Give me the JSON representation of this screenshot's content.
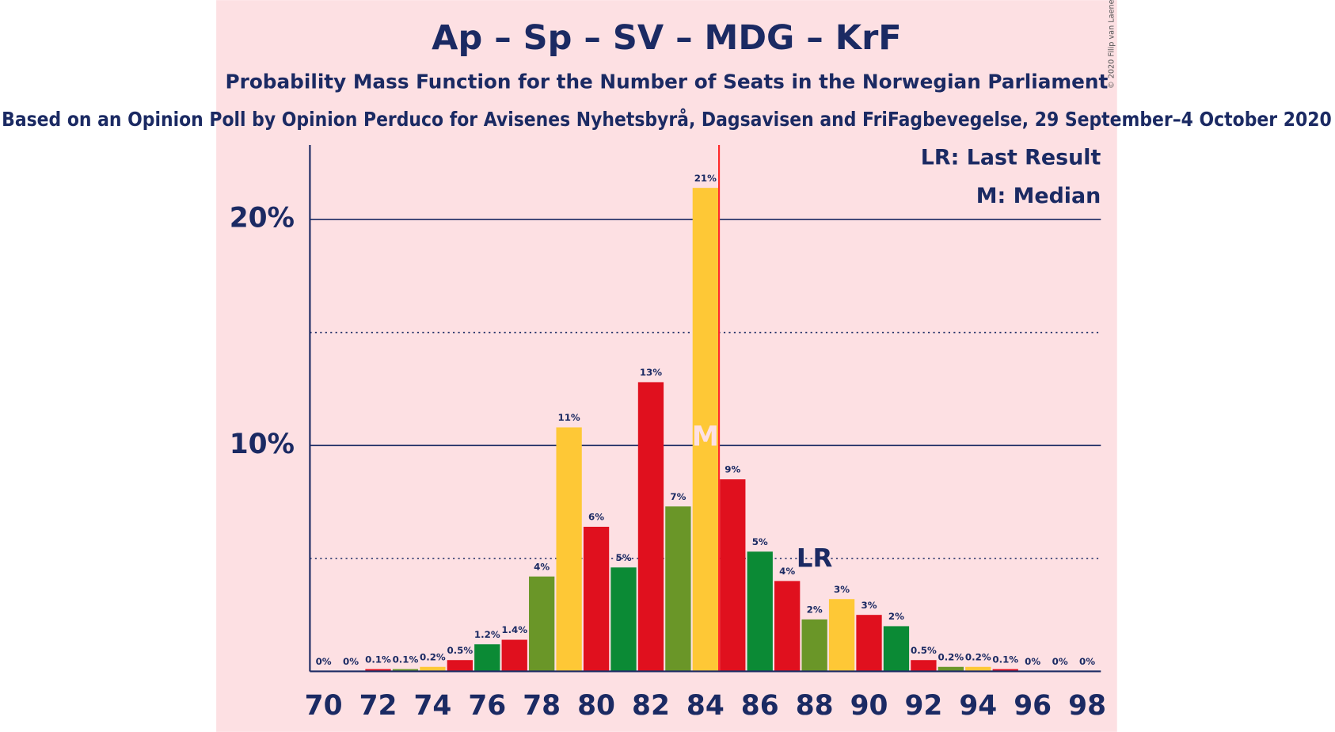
{
  "chart_data": {
    "type": "bar",
    "title": "Ap – Sp – SV – MDG – KrF",
    "subtitle": "Probability Mass Function for the Number of Seats in the Norwegian Parliament",
    "subtitle2": "Based on an Opinion Poll by Opinion Perduco for Avisenes Nyhetsbyrå, Dagsavisen and FriFagbevegelse, 29 September–4 October 2020",
    "copyright": "© 2020 Filip van Laenen",
    "x": [
      70,
      71,
      72,
      73,
      74,
      75,
      76,
      77,
      78,
      79,
      80,
      81,
      82,
      83,
      84,
      85,
      86,
      87,
      88,
      89,
      90,
      91,
      92,
      93,
      94,
      95,
      96,
      97,
      98
    ],
    "values": [
      0,
      0,
      0.1,
      0.1,
      0.2,
      0.5,
      1.2,
      1.4,
      4.2,
      10.8,
      6.4,
      4.6,
      12.8,
      7.3,
      21.4,
      8.5,
      5.3,
      4,
      2.3,
      3.2,
      2.5,
      2,
      0.5,
      0.2,
      0.2,
      0.1,
      0,
      0,
      0
    ],
    "value_labels": [
      "0%",
      "0%",
      "0.1%",
      "0.1%",
      "0.2%",
      "0.5%",
      "1.2%",
      "1.4%",
      "4%",
      "11%",
      "6%",
      "5%",
      "13%",
      "7%",
      "21%",
      "9%",
      "5%",
      "4%",
      "2%",
      "3%",
      "3%",
      "2%",
      "0.5%",
      "0.2%",
      "0.2%",
      "0.1%",
      "0%",
      "0%",
      "0%"
    ],
    "colors": [
      "#e0101e",
      "#0b8a35",
      "#e0101e",
      "#6a9628",
      "#fec836",
      "#e0101e",
      "#0b8a35",
      "#e0101e",
      "#6a9628",
      "#fec836",
      "#e0101e",
      "#0b8a35",
      "#e0101e",
      "#6a9628",
      "#fec836",
      "#e0101e",
      "#0b8a35",
      "#e0101e",
      "#6a9628",
      "#fec836",
      "#e0101e",
      "#0b8a35",
      "#e0101e",
      "#6a9628",
      "#fec836",
      "#e0101e",
      "#0b8a35",
      "#e0101e",
      "#6a9628"
    ],
    "xlim": [
      69.5,
      98.5
    ],
    "xticks": [
      70,
      72,
      74,
      76,
      78,
      80,
      82,
      84,
      86,
      88,
      90,
      92,
      94,
      96,
      98
    ],
    "ylim": [
      0,
      23.3
    ],
    "yticks": [
      {
        "value": 10,
        "label": "10%"
      },
      {
        "value": 20,
        "label": "20%"
      }
    ],
    "minor_yticks": [
      5,
      15
    ],
    "median": 84,
    "median_label": "M",
    "last_result": 88,
    "last_result_label": "LR",
    "legend": [
      "LR: Last Result",
      "M: Median"
    ]
  }
}
